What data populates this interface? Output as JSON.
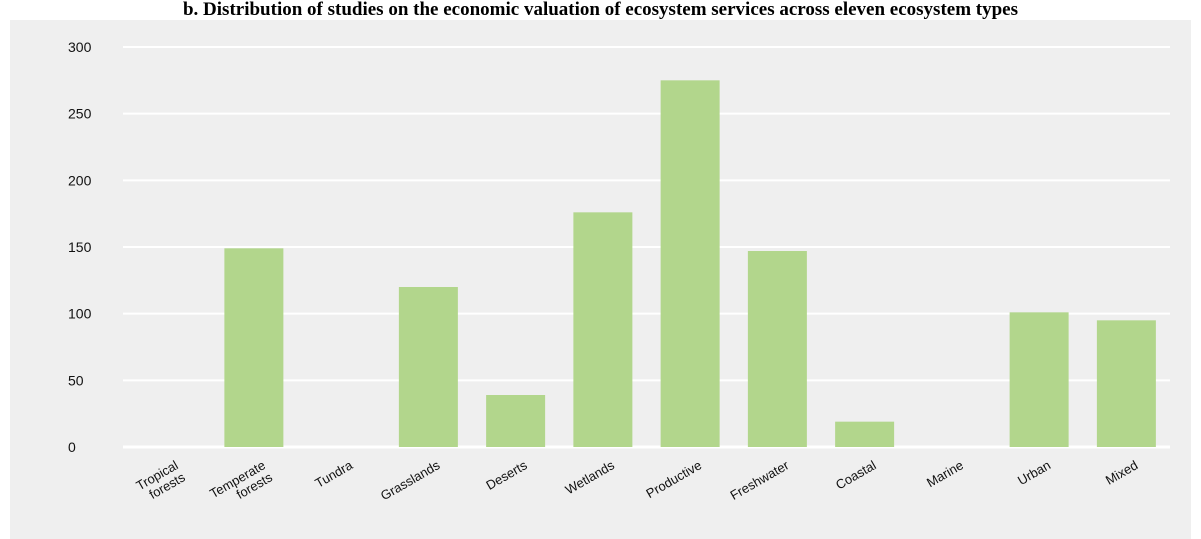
{
  "chart_data": {
    "type": "bar",
    "title": "b. Distribution of studies on the economic valuation of ecosystem services across eleven ecosystem types",
    "categories": [
      [
        "Tropical",
        "forests"
      ],
      [
        "Temperate",
        "forests"
      ],
      [
        "Tundra"
      ],
      [
        "Grasslands"
      ],
      [
        "Deserts"
      ],
      [
        "Wetlands"
      ],
      [
        "Productive"
      ],
      [
        "Freshwater"
      ],
      [
        "Coastal"
      ],
      [
        "Marine"
      ],
      [
        "Urban"
      ],
      [
        "Mixed"
      ]
    ],
    "values": [
      0,
      149,
      0,
      120,
      39,
      176,
      275,
      147,
      19,
      0,
      101,
      95
    ],
    "ylim": [
      0,
      300
    ],
    "yticks": [
      "0",
      "50",
      "100",
      "150",
      "200",
      "250",
      "300"
    ],
    "grid": true,
    "colors": {
      "bar": "#b2d68c",
      "background": "#efefef",
      "grid": "#ffffff"
    }
  }
}
